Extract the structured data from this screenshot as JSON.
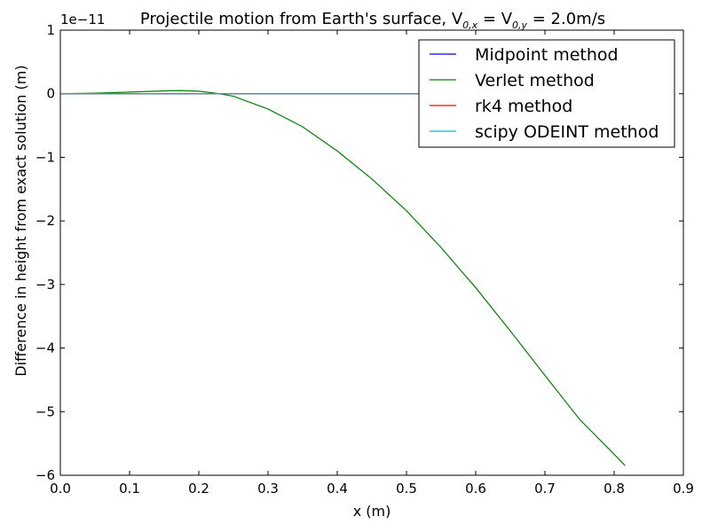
{
  "chart_data": {
    "type": "line",
    "title_prefix": "Projectile motion from Earth's surface, V",
    "title_sub_x": "0,x",
    "title_mid": " = V",
    "title_sub_y": "0,y",
    "title_suffix": " = 2.0m/s",
    "xlabel": "x (m)",
    "ylabel": "Difference in height from exact solution (m)",
    "offset_text": "1e−11",
    "xlim": [
      0.0,
      0.9
    ],
    "ylim": [
      -6e-11,
      1e-11
    ],
    "xticks": [
      0.0,
      0.1,
      0.2,
      0.3,
      0.4,
      0.5,
      0.6,
      0.7,
      0.8,
      0.9
    ],
    "xtick_labels": [
      "0.0",
      "0.1",
      "0.2",
      "0.3",
      "0.4",
      "0.5",
      "0.6",
      "0.7",
      "0.8",
      "0.9"
    ],
    "yticks": [
      1e-11,
      0,
      -1e-11,
      -2e-11,
      -3e-11,
      -4e-11,
      -5e-11,
      -6e-11
    ],
    "ytick_labels": [
      "1",
      "0",
      "−1",
      "−2",
      "−3",
      "−4",
      "−5",
      "−6"
    ],
    "grid": false,
    "legend_position": "top-right",
    "series": [
      {
        "name": "Midpoint method",
        "color": "#0000ff",
        "x": [
          0.0,
          0.816
        ],
        "y": [
          0,
          0
        ]
      },
      {
        "name": "Verlet method",
        "color": "#008000",
        "x": [
          0.0,
          0.05,
          0.1,
          0.15,
          0.175,
          0.2,
          0.23,
          0.25,
          0.3,
          0.35,
          0.4,
          0.45,
          0.5,
          0.55,
          0.6,
          0.65,
          0.7,
          0.75,
          0.8,
          0.816
        ],
        "y": [
          0,
          8e-14,
          2.6e-13,
          4.5e-13,
          5e-13,
          4e-13,
          0.0,
          -4e-13,
          -2.4e-12,
          -5.2e-12,
          -9e-12,
          -1.34e-11,
          -1.84e-11,
          -2.42e-11,
          -3.05e-11,
          -3.73e-11,
          -4.43e-11,
          -5.12e-11,
          -5.67e-11,
          -5.85e-11
        ]
      },
      {
        "name": "rk4 method",
        "color": "#ff0000",
        "x": [
          0.0,
          0.816
        ],
        "y": [
          0,
          0
        ]
      },
      {
        "name": "scipy ODEINT method",
        "color": "#00bfbf",
        "x": [
          0.0,
          0.816
        ],
        "y": [
          0,
          0
        ]
      }
    ]
  }
}
